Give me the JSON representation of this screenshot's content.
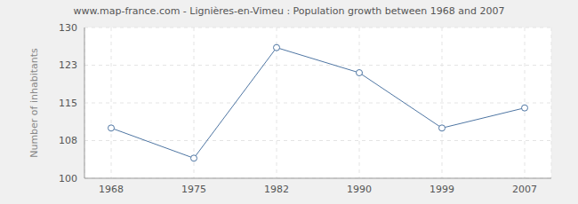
{
  "chart_data": {
    "type": "line",
    "title": "www.map-france.com - Lignières-en-Vimeu : Population growth between 1968 and 2007",
    "y_label": "Number of inhabitants",
    "categories": [
      "1968",
      "1975",
      "1982",
      "1990",
      "1999",
      "2007"
    ],
    "values": [
      110,
      104,
      126,
      121,
      110,
      114
    ],
    "color": "#4f76a3",
    "marker": "circle",
    "ylim": [
      100,
      130
    ],
    "yticks": [
      100,
      {
        "value": 107.5,
        "label": "108"
      },
      115,
      {
        "value": 122.5,
        "label": "123"
      },
      130
    ],
    "grid": true
  }
}
